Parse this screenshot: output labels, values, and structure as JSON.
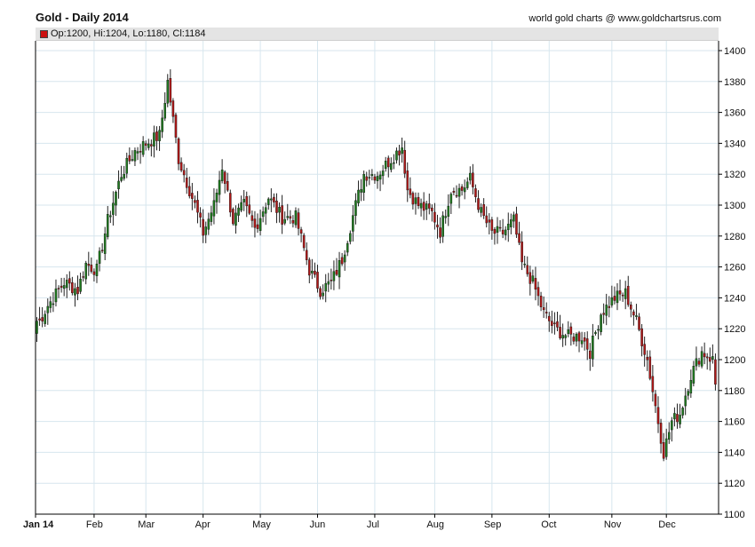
{
  "title": "Gold - Daily 2014",
  "source": "world gold charts @ www.goldchartsrus.com",
  "ohlc_label": "Op:1200, Hi:1204, Lo:1180, Cl:1184",
  "colors": {
    "up": "#1f7a1f",
    "down": "#b01818",
    "wick": "#222222",
    "grid": "#d7e6ee",
    "axis": "#000000"
  },
  "chart_data": {
    "type": "candlestick",
    "title": "Gold - Daily 2014",
    "xlabel": "",
    "ylabel": "",
    "x_tick_labels": [
      "Jan 14",
      "Feb",
      "Mar",
      "Apr",
      "May",
      "Jun",
      "Jul",
      "Aug",
      "Sep",
      "Oct",
      "Nov",
      "Dec"
    ],
    "y_ticks": [
      1100,
      1120,
      1140,
      1160,
      1180,
      1200,
      1220,
      1240,
      1260,
      1280,
      1300,
      1320,
      1340,
      1360,
      1380,
      1400
    ],
    "ylim": [
      1100,
      1410
    ],
    "grid": true,
    "y_axis_side": "right",
    "trading_days_per_month": [
      21,
      19,
      21,
      21,
      21,
      21,
      22,
      21,
      21,
      23,
      20,
      19
    ],
    "close_anchors": [
      [
        1,
        1225
      ],
      [
        4,
        1235
      ],
      [
        10,
        1250
      ],
      [
        15,
        1245
      ],
      [
        18,
        1262
      ],
      [
        22,
        1258
      ],
      [
        26,
        1290
      ],
      [
        31,
        1320
      ],
      [
        36,
        1335
      ],
      [
        40,
        1340
      ],
      [
        45,
        1345
      ],
      [
        48,
        1380
      ],
      [
        52,
        1330
      ],
      [
        56,
        1310
      ],
      [
        58,
        1300
      ],
      [
        61,
        1282
      ],
      [
        65,
        1300
      ],
      [
        68,
        1325
      ],
      [
        72,
        1290
      ],
      [
        76,
        1300
      ],
      [
        80,
        1285
      ],
      [
        85,
        1305
      ],
      [
        90,
        1292
      ],
      [
        95,
        1292
      ],
      [
        100,
        1258
      ],
      [
        104,
        1245
      ],
      [
        108,
        1250
      ],
      [
        112,
        1265
      ],
      [
        117,
        1300
      ],
      [
        120,
        1320
      ],
      [
        125,
        1320
      ],
      [
        130,
        1330
      ],
      [
        134,
        1338
      ],
      [
        136,
        1310
      ],
      [
        140,
        1300
      ],
      [
        145,
        1295
      ],
      [
        148,
        1283
      ],
      [
        152,
        1310
      ],
      [
        156,
        1310
      ],
      [
        159,
        1317
      ],
      [
        163,
        1295
      ],
      [
        167,
        1282
      ],
      [
        171,
        1282
      ],
      [
        175,
        1290
      ],
      [
        178,
        1262
      ],
      [
        182,
        1250
      ],
      [
        186,
        1230
      ],
      [
        190,
        1220
      ],
      [
        195,
        1215
      ],
      [
        200,
        1215
      ],
      [
        203,
        1205
      ],
      [
        207,
        1230
      ],
      [
        212,
        1240
      ],
      [
        216,
        1243
      ],
      [
        220,
        1225
      ],
      [
        224,
        1200
      ],
      [
        227,
        1170
      ],
      [
        230,
        1140
      ],
      [
        233,
        1160
      ],
      [
        236,
        1165
      ],
      [
        240,
        1190
      ],
      [
        244,
        1205
      ],
      [
        248,
        1200
      ],
      [
        250,
        1170
      ],
      [
        252,
        1210
      ],
      [
        255,
        1198
      ],
      [
        257,
        1235
      ],
      [
        258,
        1222
      ],
      [
        260,
        1185
      ],
      [
        262,
        1178
      ],
      [
        264,
        1185
      ],
      [
        266,
        1190
      ],
      [
        268,
        1184
      ]
    ],
    "last_bar": {
      "open": 1200,
      "high": 1204,
      "low": 1180,
      "close": 1184
    }
  }
}
